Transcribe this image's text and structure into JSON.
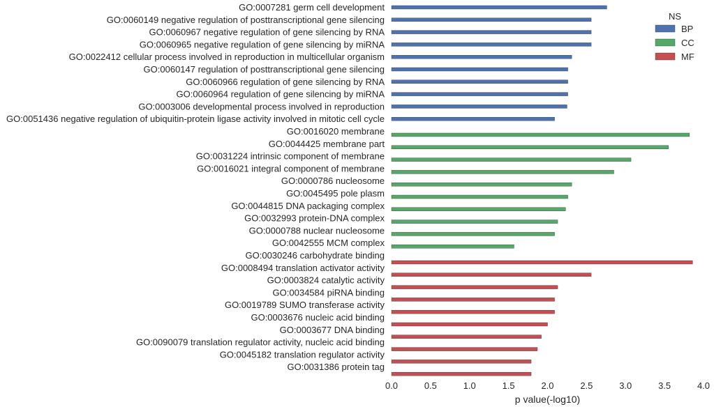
{
  "chart_data": {
    "type": "bar",
    "orientation": "horizontal",
    "xlabel": "p value(-log10)",
    "xlim": [
      0,
      4
    ],
    "x_ticks": [
      "0.0",
      "0.5",
      "1.0",
      "1.5",
      "2.0",
      "2.5",
      "3.0",
      "3.5",
      "4.0"
    ],
    "grid": false,
    "legend": {
      "title": "NS",
      "position": "top-right",
      "entries": [
        {
          "name": "BP",
          "color": "#4c72b0"
        },
        {
          "name": "CC",
          "color": "#55a868"
        },
        {
          "name": "MF",
          "color": "#c44e52"
        }
      ]
    },
    "bars": [
      {
        "label": "GO:0007281 germ cell development",
        "value": 2.76,
        "ns": "BP"
      },
      {
        "label": "GO:0060149 negative regulation of posttranscriptional gene silencing",
        "value": 2.56,
        "ns": "BP"
      },
      {
        "label": "GO:0060967 negative regulation of gene silencing by RNA",
        "value": 2.56,
        "ns": "BP"
      },
      {
        "label": "GO:0060965 negative regulation of gene silencing by miRNA",
        "value": 2.56,
        "ns": "BP"
      },
      {
        "label": "GO:0022412 cellular process involved in reproduction in multicellular organism",
        "value": 2.31,
        "ns": "BP"
      },
      {
        "label": "GO:0060147 regulation of posttranscriptional gene silencing",
        "value": 2.26,
        "ns": "BP"
      },
      {
        "label": "GO:0060966 regulation of gene silencing by RNA",
        "value": 2.26,
        "ns": "BP"
      },
      {
        "label": "GO:0060964 regulation of gene silencing by miRNA",
        "value": 2.26,
        "ns": "BP"
      },
      {
        "label": "GO:0003006 developmental process involved in reproduction",
        "value": 2.25,
        "ns": "BP"
      },
      {
        "label": "GO:0051436 negative regulation of ubiquitin-protein ligase activity involved in mitotic cell cycle",
        "value": 2.09,
        "ns": "BP"
      },
      {
        "label": "GO:0016020 membrane",
        "value": 3.82,
        "ns": "CC"
      },
      {
        "label": "GO:0044425 membrane part",
        "value": 3.55,
        "ns": "CC"
      },
      {
        "label": "GO:0031224 intrinsic component of membrane",
        "value": 3.07,
        "ns": "CC"
      },
      {
        "label": "GO:0016021 integral component of membrane",
        "value": 2.85,
        "ns": "CC"
      },
      {
        "label": "GO:0000786 nucleosome",
        "value": 2.31,
        "ns": "CC"
      },
      {
        "label": "GO:0045495 pole plasm",
        "value": 2.26,
        "ns": "CC"
      },
      {
        "label": "GO:0044815 DNA packaging complex",
        "value": 2.23,
        "ns": "CC"
      },
      {
        "label": "GO:0032993 protein-DNA complex",
        "value": 2.13,
        "ns": "CC"
      },
      {
        "label": "GO:0000788 nuclear nucleosome",
        "value": 2.09,
        "ns": "CC"
      },
      {
        "label": "GO:0042555 MCM complex",
        "value": 1.57,
        "ns": "CC"
      },
      {
        "label": "GO:0030246 carbohydrate binding",
        "value": 3.86,
        "ns": "MF"
      },
      {
        "label": "GO:0008494 translation activator activity",
        "value": 2.56,
        "ns": "MF"
      },
      {
        "label": "GO:0003824 catalytic activity",
        "value": 2.13,
        "ns": "MF"
      },
      {
        "label": "GO:0034584 piRNA binding",
        "value": 2.09,
        "ns": "MF"
      },
      {
        "label": "GO:0019789 SUMO transferase activity",
        "value": 2.09,
        "ns": "MF"
      },
      {
        "label": "GO:0003676 nucleic acid binding",
        "value": 2.0,
        "ns": "MF"
      },
      {
        "label": "GO:0003677 DNA binding",
        "value": 1.92,
        "ns": "MF"
      },
      {
        "label": "GO:0090079 translation regulator activity, nucleic acid binding",
        "value": 1.87,
        "ns": "MF"
      },
      {
        "label": "GO:0045182 translation regulator activity",
        "value": 1.79,
        "ns": "MF"
      },
      {
        "label": "GO:0031386 protein tag",
        "value": 1.79,
        "ns": "MF"
      }
    ]
  }
}
